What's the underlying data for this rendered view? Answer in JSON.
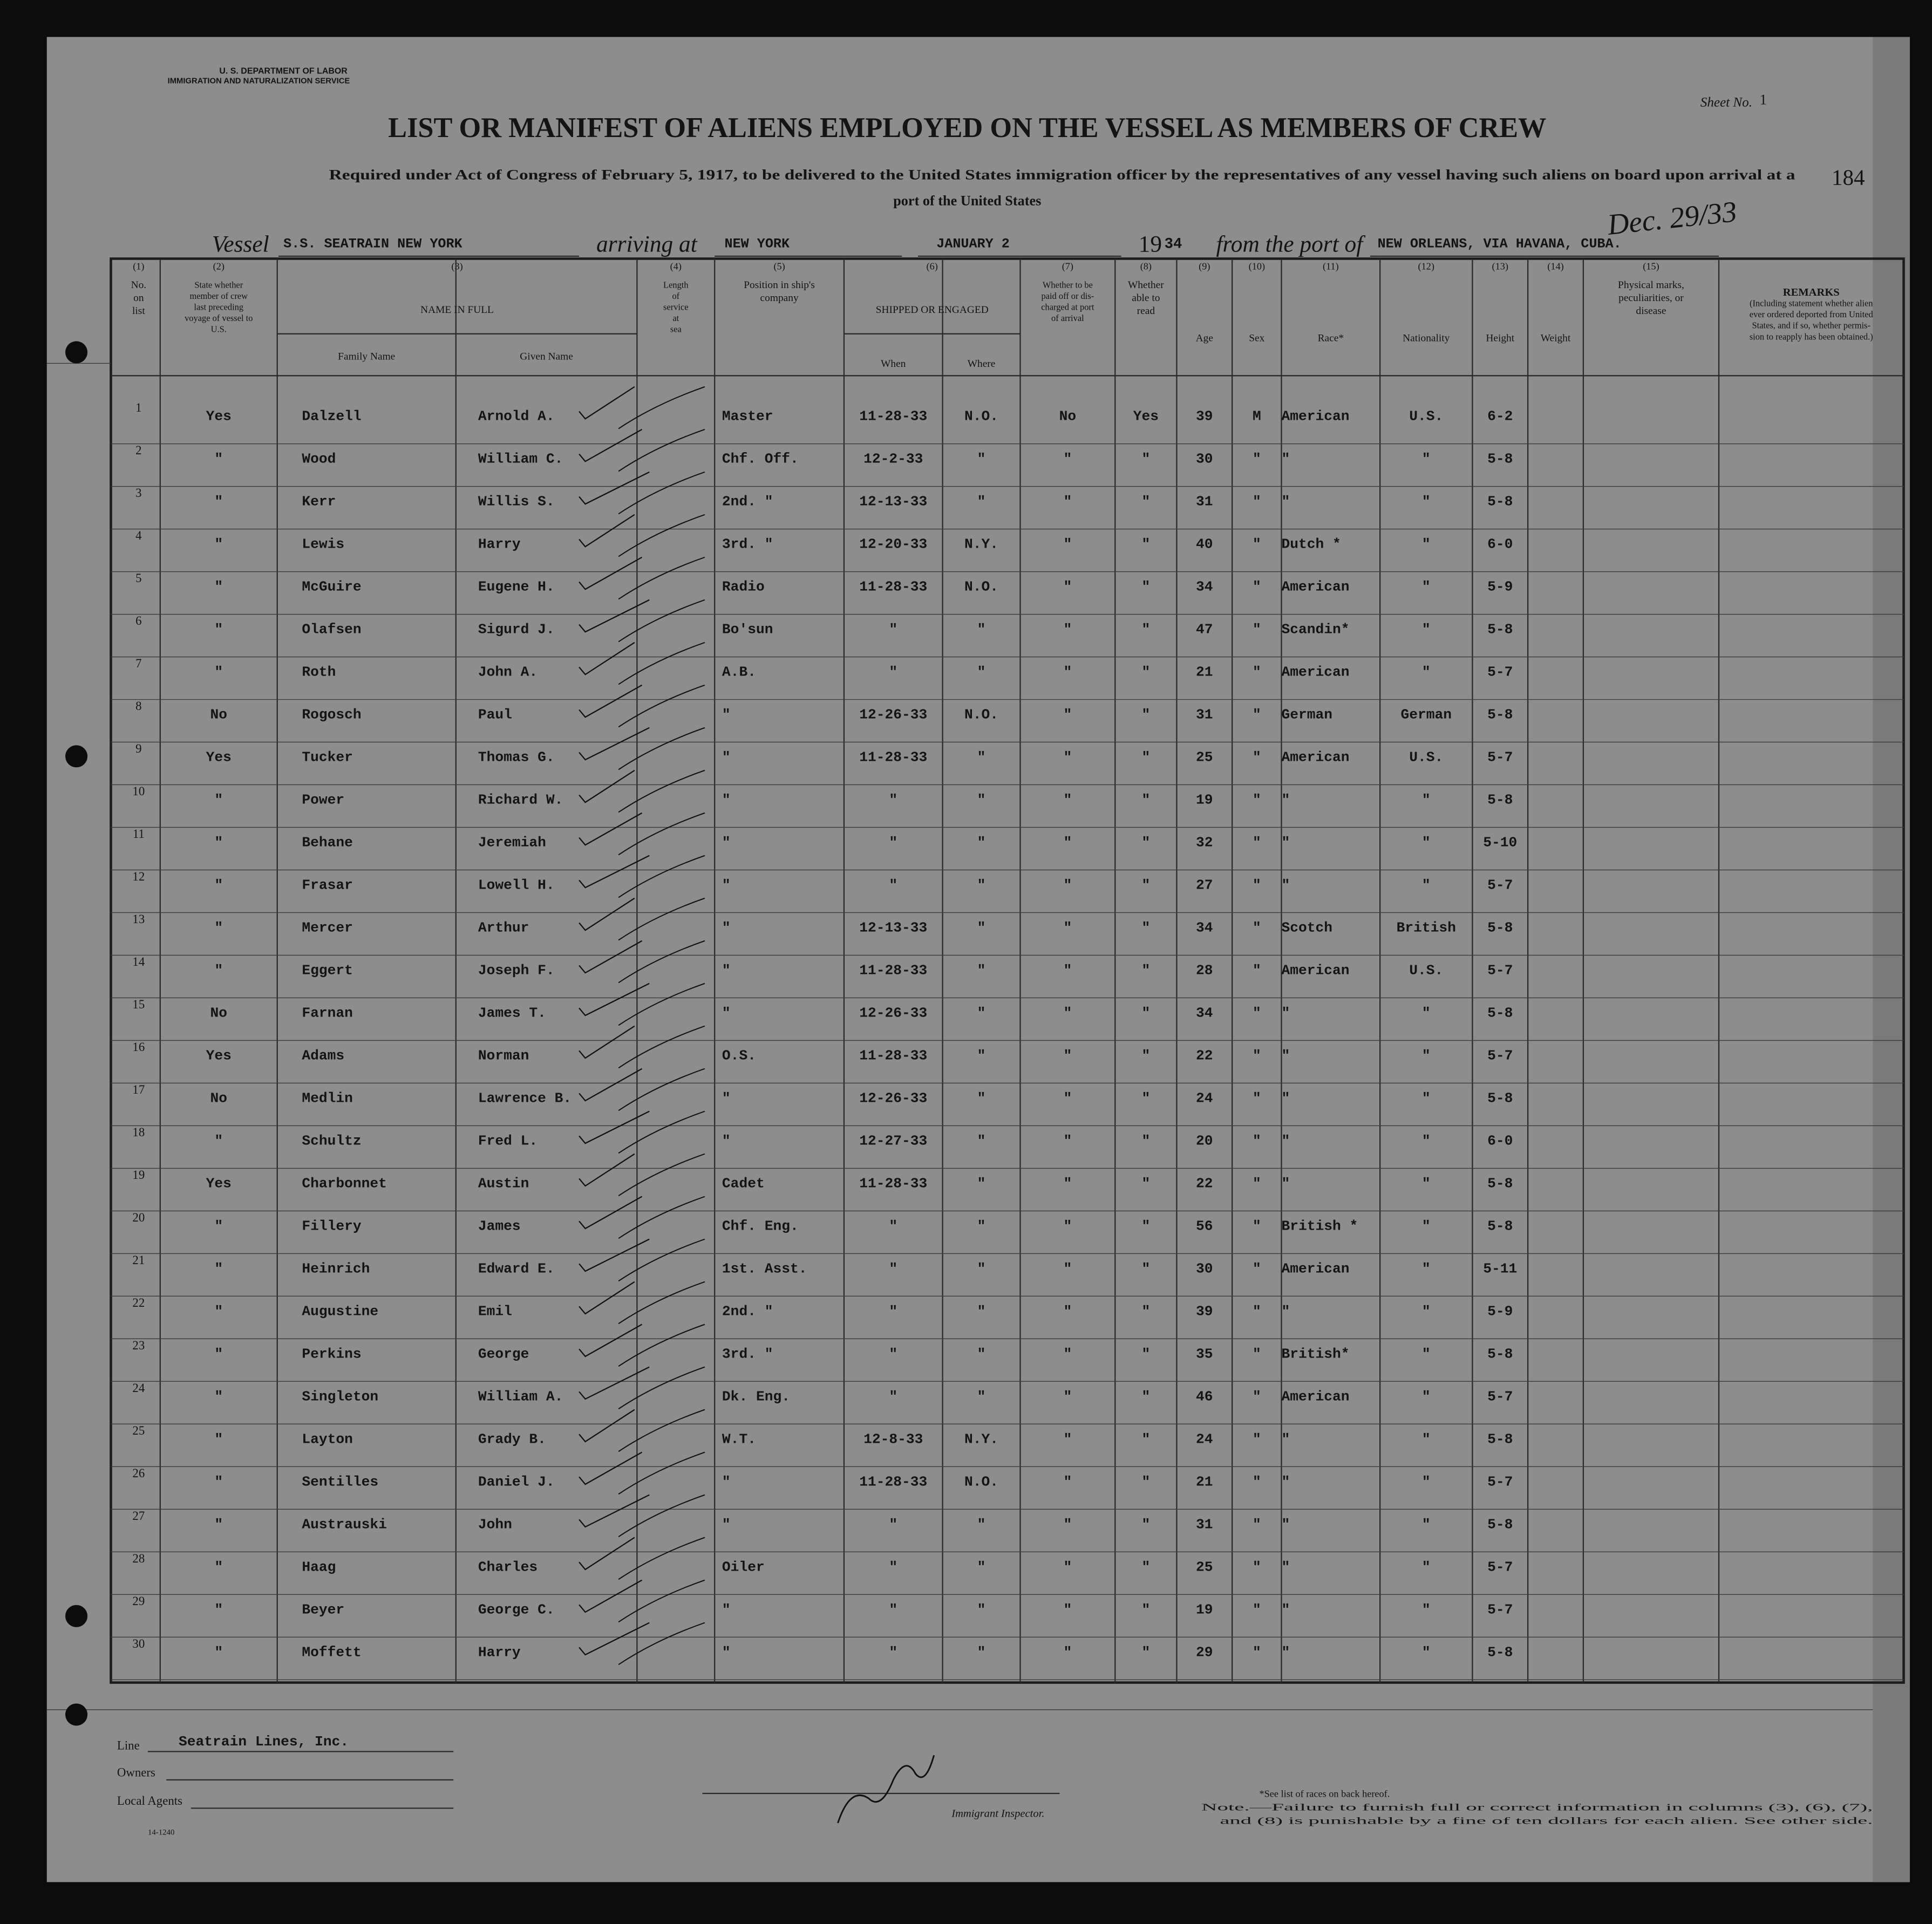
{
  "header": {
    "department": "U. S. DEPARTMENT OF LABOR",
    "service": "IMMIGRATION AND NATURALIZATION SERVICE",
    "sheet_label": "Sheet No.",
    "sheet_no": "1",
    "page_no": "184",
    "title": "LIST OR MANIFEST OF ALIENS EMPLOYED ON THE VESSEL AS MEMBERS OF CREW",
    "subtitle": [
      "Required under Act of Congress of February 5, 1917, to be delivered to the United States immigration officer by the representatives of any vessel having such aliens on board upon arrival at a",
      "port of the United States"
    ]
  },
  "vessel_line": {
    "vessel_label": "Vessel",
    "vessel": "S.S. SEATRAIN NEW YORK",
    "arriving_label": "arriving at",
    "port": "NEW YORK",
    "date": "JANUARY 2",
    "year_prefix": "19",
    "year": "34",
    "from_label": "from the port of",
    "from_port": "NEW ORLEANS, VIA HAVANA, CUBA.",
    "handwritten_date": "Dec. 29/33"
  },
  "table": {
    "columns": [
      {
        "num": "(1)",
        "label": [
          "No.",
          "on",
          "list"
        ]
      },
      {
        "num": "(2)",
        "label": [
          "State whether",
          "member of crew",
          "last preceding",
          "voyage of vessel to",
          "U.S."
        ]
      },
      {
        "num": "(3)",
        "label": [
          "NAME IN FULL"
        ],
        "sub": [
          "Family Name",
          "Given Name"
        ]
      },
      {
        "num": "(4)",
        "label": [
          "Length",
          "of",
          "service",
          "at",
          "sea"
        ]
      },
      {
        "num": "(5)",
        "label": [
          "Position in ship's",
          "company"
        ]
      },
      {
        "num": "(6)",
        "label": [
          "SHIPPED OR ENGAGED"
        ],
        "sub": [
          "When",
          "Where"
        ]
      },
      {
        "num": "(7)",
        "label": [
          "Whether to be",
          "paid off or dis-",
          "charged at port",
          "of arrival"
        ]
      },
      {
        "num": "(8)",
        "label": [
          "Whether",
          "able to",
          "read"
        ]
      },
      {
        "num": "(9)",
        "label": [
          "Age"
        ]
      },
      {
        "num": "(10)",
        "label": [
          "Sex"
        ]
      },
      {
        "num": "(11)",
        "label": [
          "Race*"
        ]
      },
      {
        "num": "(12)",
        "label": [
          "Nationality"
        ]
      },
      {
        "num": "(13)",
        "label": [
          "Height"
        ]
      },
      {
        "num": "(14)",
        "label": [
          "Weight"
        ]
      },
      {
        "num": "(15)",
        "label": [
          "Physical marks,",
          "peculiarities, or",
          "disease"
        ]
      },
      {
        "label": [
          "REMARKS",
          "(Including statement whether alien",
          "ever ordered deported from United",
          "States, and if so, whether permis-",
          "sion to reapply has been obtained.)"
        ]
      }
    ],
    "rows": [
      [
        "1",
        "Yes",
        "Dalzell",
        "Arnold A.",
        "Master",
        "11-28-33",
        "N.O.",
        "No",
        "Yes",
        "39",
        "M",
        "American",
        "U.S.",
        "6-2"
      ],
      [
        "2",
        "\"",
        "Wood",
        "William C.",
        "Chf. Off.",
        "12-2-33",
        "\"",
        "\"",
        "\"",
        "30",
        "\"",
        "\"",
        "\"",
        "5-8"
      ],
      [
        "3",
        "\"",
        "Kerr",
        "Willis S.",
        "2nd. \"",
        "12-13-33",
        "\"",
        "\"",
        "\"",
        "31",
        "\"",
        "\"",
        "\"",
        "5-8"
      ],
      [
        "4",
        "\"",
        "Lewis",
        "Harry",
        "3rd. \"",
        "12-20-33",
        "N.Y.",
        "\"",
        "\"",
        "40",
        "\"",
        "Dutch *",
        "\"",
        "6-0"
      ],
      [
        "5",
        "\"",
        "McGuire",
        "Eugene H.",
        "Radio",
        "11-28-33",
        "N.O.",
        "\"",
        "\"",
        "34",
        "\"",
        "American",
        "\"",
        "5-9"
      ],
      [
        "6",
        "\"",
        "Olafsen",
        "Sigurd J.",
        "Bo'sun",
        "\"",
        "\"",
        "\"",
        "\"",
        "47",
        "\"",
        "Scandin*",
        "\"",
        "5-8"
      ],
      [
        "7",
        "\"",
        "Roth",
        "John A.",
        "A.B.",
        "\"",
        "\"",
        "\"",
        "\"",
        "21",
        "\"",
        "American",
        "\"",
        "5-7"
      ],
      [
        "8",
        "No",
        "Rogosch",
        "Paul",
        "\"",
        "12-26-33",
        "N.O.",
        "\"",
        "\"",
        "31",
        "\"",
        "German",
        "German",
        "5-8"
      ],
      [
        "9",
        "Yes",
        "Tucker",
        "Thomas G.",
        "\"",
        "11-28-33",
        "\"",
        "\"",
        "\"",
        "25",
        "\"",
        "American",
        "U.S.",
        "5-7"
      ],
      [
        "10",
        "\"",
        "Power",
        "Richard W.",
        "\"",
        "\"",
        "\"",
        "\"",
        "\"",
        "19",
        "\"",
        "\"",
        "\"",
        "5-8"
      ],
      [
        "11",
        "\"",
        "Behane",
        "Jeremiah",
        "\"",
        "\"",
        "\"",
        "\"",
        "\"",
        "32",
        "\"",
        "\"",
        "\"",
        "5-10"
      ],
      [
        "12",
        "\"",
        "Frasar",
        "Lowell H.",
        "\"",
        "\"",
        "\"",
        "\"",
        "\"",
        "27",
        "\"",
        "\"",
        "\"",
        "5-7"
      ],
      [
        "13",
        "\"",
        "Mercer",
        "Arthur",
        "\"",
        "12-13-33",
        "\"",
        "\"",
        "\"",
        "34",
        "\"",
        "Scotch",
        "British",
        "5-8"
      ],
      [
        "14",
        "\"",
        "Eggert",
        "Joseph F.",
        "\"",
        "11-28-33",
        "\"",
        "\"",
        "\"",
        "28",
        "\"",
        "American",
        "U.S.",
        "5-7"
      ],
      [
        "15",
        "No",
        "Farnan",
        "James T.",
        "\"",
        "12-26-33",
        "\"",
        "\"",
        "\"",
        "34",
        "\"",
        "\"",
        "\"",
        "5-8"
      ],
      [
        "16",
        "Yes",
        "Adams",
        "Norman",
        "O.S.",
        "11-28-33",
        "\"",
        "\"",
        "\"",
        "22",
        "\"",
        "\"",
        "\"",
        "5-7"
      ],
      [
        "17",
        "No",
        "Medlin",
        "Lawrence B.",
        "\"",
        "12-26-33",
        "\"",
        "\"",
        "\"",
        "24",
        "\"",
        "\"",
        "\"",
        "5-8"
      ],
      [
        "18",
        "\"",
        "Schultz",
        "Fred L.",
        "\"",
        "12-27-33",
        "\"",
        "\"",
        "\"",
        "20",
        "\"",
        "\"",
        "\"",
        "6-0"
      ],
      [
        "19",
        "Yes",
        "Charbonnet",
        "Austin",
        "Cadet",
        "11-28-33",
        "\"",
        "\"",
        "\"",
        "22",
        "\"",
        "\"",
        "\"",
        "5-8"
      ],
      [
        "20",
        "\"",
        "Fillery",
        "James",
        "Chf. Eng.",
        "\"",
        "\"",
        "\"",
        "\"",
        "56",
        "\"",
        "British *",
        "\"",
        "5-8"
      ],
      [
        "21",
        "\"",
        "Heinrich",
        "Edward E.",
        "1st. Asst.",
        "\"",
        "\"",
        "\"",
        "\"",
        "30",
        "\"",
        "American",
        "\"",
        "5-11"
      ],
      [
        "22",
        "\"",
        "Augustine",
        "Emil",
        "2nd. \"",
        "\"",
        "\"",
        "\"",
        "\"",
        "39",
        "\"",
        "\"",
        "\"",
        "5-9"
      ],
      [
        "23",
        "\"",
        "Perkins",
        "George",
        "3rd. \"",
        "\"",
        "\"",
        "\"",
        "\"",
        "35",
        "\"",
        "British*",
        "\"",
        "5-8"
      ],
      [
        "24",
        "\"",
        "Singleton",
        "William A.",
        "Dk. Eng.",
        "\"",
        "\"",
        "\"",
        "\"",
        "46",
        "\"",
        "American",
        "\"",
        "5-7"
      ],
      [
        "25",
        "\"",
        "Layton",
        "Grady B.",
        "W.T.",
        "12-8-33",
        "N.Y.",
        "\"",
        "\"",
        "24",
        "\"",
        "\"",
        "\"",
        "5-8"
      ],
      [
        "26",
        "\"",
        "Sentilles",
        "Daniel J.",
        "\"",
        "11-28-33",
        "N.O.",
        "\"",
        "\"",
        "21",
        "\"",
        "\"",
        "\"",
        "5-7"
      ],
      [
        "27",
        "\"",
        "Austrauski",
        "John",
        "\"",
        "\"",
        "\"",
        "\"",
        "\"",
        "31",
        "\"",
        "\"",
        "\"",
        "5-8"
      ],
      [
        "28",
        "\"",
        "Haag",
        "Charles",
        "Oiler",
        "\"",
        "\"",
        "\"",
        "\"",
        "25",
        "\"",
        "\"",
        "\"",
        "5-7"
      ],
      [
        "29",
        "\"",
        "Beyer",
        "George C.",
        "\"",
        "\"",
        "\"",
        "\"",
        "\"",
        "19",
        "\"",
        "\"",
        "\"",
        "5-7"
      ],
      [
        "30",
        "\"",
        "Moffett",
        "Harry",
        "\"",
        "\"",
        "\"",
        "\"",
        "\"",
        "29",
        "\"",
        "\"",
        "\"",
        "5-8"
      ]
    ]
  },
  "footer": {
    "line_label": "Line",
    "line": "Seatrain Lines, Inc.",
    "owners_label": "Owners",
    "agents_label": "Local Agents",
    "form_no": "14-1240",
    "inspector_label": "Immigrant Inspector.",
    "races_note": "*See list of races on back hereof.",
    "note": [
      "Note.—Failure to furnish full or correct information in columns (3), (6), (7),",
      "and (8) is punishable by a fine of ten dollars for each alien. See other side."
    ]
  }
}
